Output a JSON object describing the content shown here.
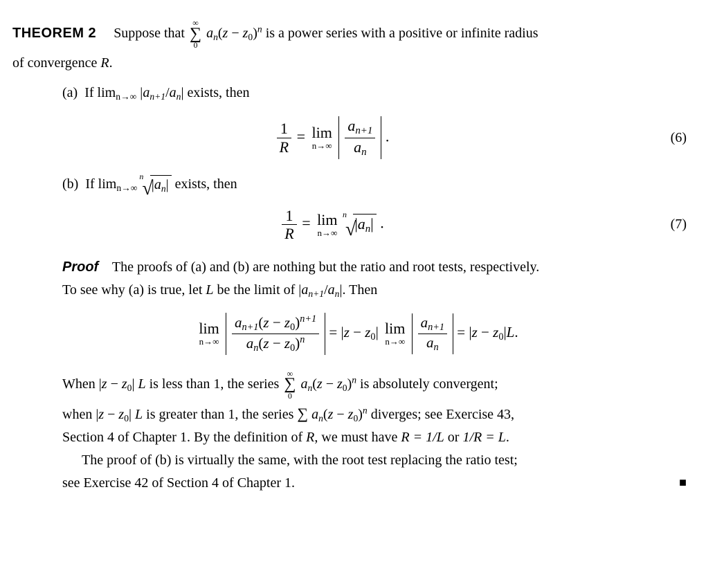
{
  "theorem": {
    "label": "THEOREM 2",
    "intro_a": "Suppose that ",
    "intro_b": " is a power series with a positive or infinite radius",
    "intro_c": "of convergence ",
    "R": "R",
    "period": "."
  },
  "partA": {
    "label": "(a)",
    "text_a": "If lim",
    "limsub": "n→∞",
    "ratio_l": " |",
    "a_np1": "a",
    "np1": "n+1",
    "slash": "/",
    "a_n": "a",
    "nn": "n",
    "ratio_r": "| exists, then"
  },
  "eq6": {
    "one": "1",
    "R": "R",
    "eq": " = ",
    "lim": "lim",
    "limsub": "n→∞",
    "a_np1": "a",
    "np1": "n+1",
    "a_n": "a",
    "nn": "n",
    "dot": ".",
    "num": "(6)"
  },
  "partB": {
    "label": "(b)",
    "text_a": "If lim",
    "limsub": "n→∞",
    "rootidx": "n",
    "abs_l": "|",
    "a_n": "a",
    "nn": "n",
    "abs_r": "|",
    "tail": " exists, then"
  },
  "eq7": {
    "one": "1",
    "R": "R",
    "eq": " = ",
    "lim": "lim",
    "limsub": "n→∞",
    "rootidx": "n",
    "abs_l": "|",
    "a_n": "a",
    "nn": "n",
    "abs_r": "|",
    "dot": ".",
    "num": "(7)"
  },
  "sumExpr": {
    "upper": "∞",
    "lower": "0",
    "a": "a",
    "n": "n",
    "lpar": "(",
    "z": "z",
    "minus": " − ",
    "z0": "z",
    "zero": "0",
    "rpar": ")",
    "pow_n": "n"
  },
  "proof": {
    "label": "Proof",
    "p1a": "The proofs of (a) and (b) are nothing but the ratio and root tests, respectively.",
    "p1b": "To see why (a) is true, let ",
    "L": "L",
    "p1c": " be the limit of |",
    "p1d": "|. Then"
  },
  "eqMid": {
    "lim": "lim",
    "limsub": "n→∞",
    "np1": "n+1",
    "nn": "n",
    "eq": " = ",
    "absz_a": "|",
    "z": "z",
    "minus": " − ",
    "z0": "z",
    "zero": "0",
    "absz_b": "| ",
    "eq2": " = ",
    "L": "L",
    "dot": "."
  },
  "proof2": {
    "p2a": "When |",
    "p2b": "| ",
    "L": "L",
    "p2c": " is less than 1, the series ",
    "p2d": " is absolutely convergent;",
    "p3a": "when |",
    "p3b": "| ",
    "p3c": " is greater than 1, the series ",
    "p3d": " diverges; see Exercise 43,",
    "p4": "Section 4 of Chapter 1. By the definition of ",
    "R": "R",
    "p4b": ", we must have ",
    "eqR": "R = 1/L",
    "or": " or ",
    "eqRinv": "1/R = L",
    "p4c": ".",
    "p5a": "The proof of (b) is virtually the same, with the root test replacing the ratio test;",
    "p5b": "see Exercise 42 of Section 4 of Chapter 1.",
    "qed": "■"
  }
}
